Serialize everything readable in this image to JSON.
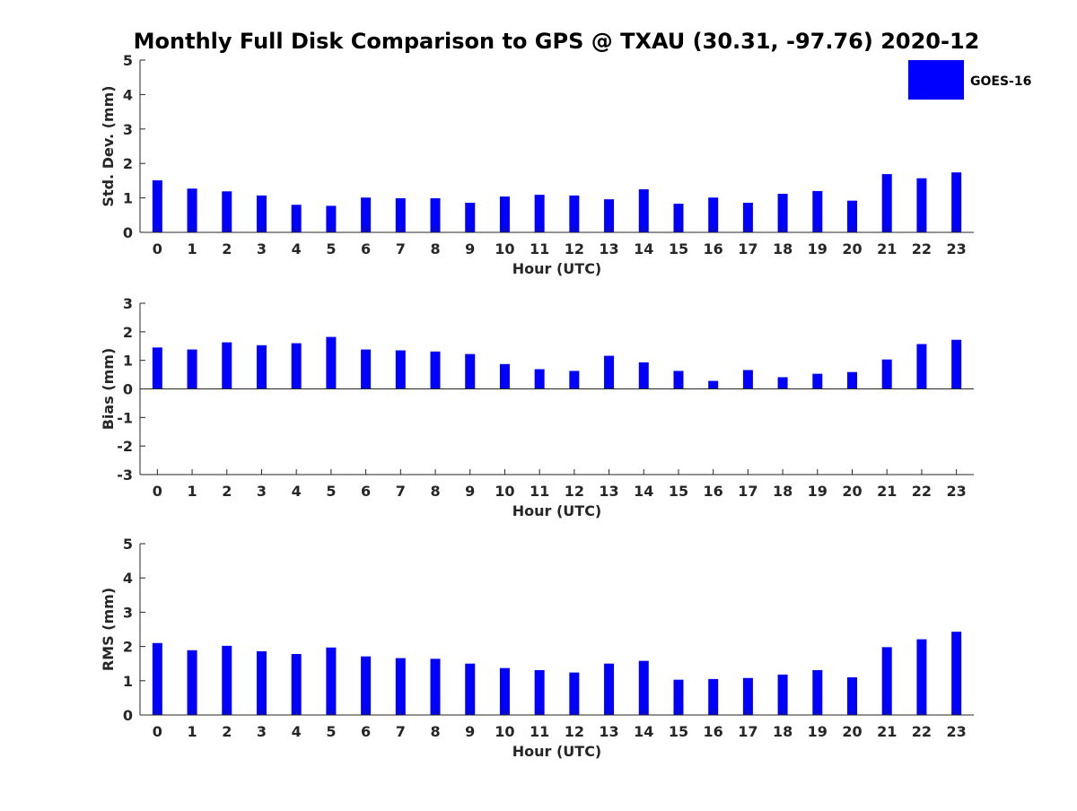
{
  "title": "Monthly Full Disk Comparison to GPS @ TXAU (30.31, -97.76) 2020-12",
  "legend": {
    "label": "GOES-16",
    "color": "#0000ff"
  },
  "chart_data": [
    {
      "type": "bar",
      "panel": "stddev",
      "xlabel": "Hour (UTC)",
      "ylabel": "Std. Dev. (mm)",
      "ylim": [
        0,
        5
      ],
      "yticks": [
        0,
        1,
        2,
        3,
        4,
        5
      ],
      "categories": [
        0,
        1,
        2,
        3,
        4,
        5,
        6,
        7,
        8,
        9,
        10,
        11,
        12,
        13,
        14,
        15,
        16,
        17,
        18,
        19,
        20,
        21,
        22,
        23
      ],
      "series": [
        {
          "name": "GOES-16",
          "color": "#0000ff",
          "values": [
            1.51,
            1.27,
            1.19,
            1.07,
            0.8,
            0.77,
            1.01,
            0.99,
            0.99,
            0.86,
            1.04,
            1.09,
            1.07,
            0.96,
            1.25,
            0.83,
            1.01,
            0.86,
            1.12,
            1.2,
            0.92,
            1.69,
            1.57,
            1.74
          ]
        }
      ],
      "grid": false
    },
    {
      "type": "bar",
      "panel": "bias",
      "xlabel": "Hour (UTC)",
      "ylabel": "Bias (mm)",
      "ylim": [
        -3,
        3
      ],
      "yticks": [
        -3,
        -2,
        -1,
        0,
        1,
        2,
        3
      ],
      "categories": [
        0,
        1,
        2,
        3,
        4,
        5,
        6,
        7,
        8,
        9,
        10,
        11,
        12,
        13,
        14,
        15,
        16,
        17,
        18,
        19,
        20,
        21,
        22,
        23
      ],
      "series": [
        {
          "name": "GOES-16",
          "color": "#0000ff",
          "values": [
            1.45,
            1.38,
            1.63,
            1.53,
            1.6,
            1.82,
            1.38,
            1.35,
            1.31,
            1.22,
            0.87,
            0.69,
            0.63,
            1.16,
            0.93,
            0.63,
            0.28,
            0.66,
            0.41,
            0.53,
            0.59,
            1.03,
            1.57,
            1.72
          ]
        }
      ],
      "grid": false
    },
    {
      "type": "bar",
      "panel": "rms",
      "xlabel": "Hour (UTC)",
      "ylabel": "RMS (mm)",
      "ylim": [
        0,
        5
      ],
      "yticks": [
        0,
        1,
        2,
        3,
        4,
        5
      ],
      "categories": [
        0,
        1,
        2,
        3,
        4,
        5,
        6,
        7,
        8,
        9,
        10,
        11,
        12,
        13,
        14,
        15,
        16,
        17,
        18,
        19,
        20,
        21,
        22,
        23
      ],
      "series": [
        {
          "name": "GOES-16",
          "color": "#0000ff",
          "values": [
            2.1,
            1.89,
            2.02,
            1.86,
            1.78,
            1.97,
            1.71,
            1.66,
            1.64,
            1.5,
            1.37,
            1.31,
            1.24,
            1.5,
            1.58,
            1.03,
            1.05,
            1.08,
            1.18,
            1.31,
            1.1,
            1.98,
            2.21,
            2.43
          ]
        }
      ],
      "grid": false
    }
  ]
}
